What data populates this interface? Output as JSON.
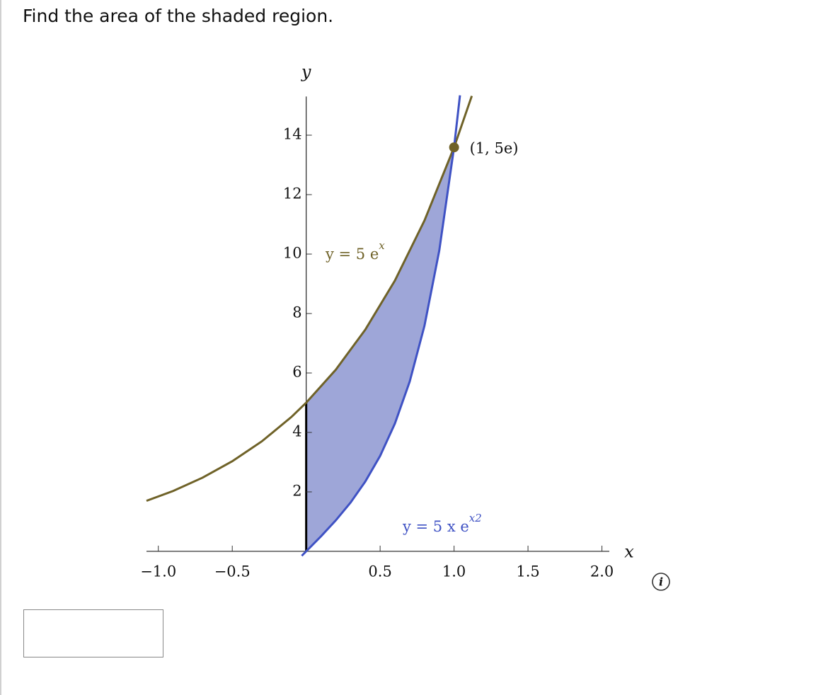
{
  "question": "Find the area of the shaded region.",
  "chart_data": {
    "type": "line",
    "axis_labels": {
      "x": "x",
      "y": "y"
    },
    "xlim": [
      -1.08,
      2.05
    ],
    "ylim": [
      0,
      15.3
    ],
    "xticks": [
      {
        "value": -1,
        "label": "−1.0"
      },
      {
        "value": -0.5,
        "label": "−0.5"
      },
      0.5,
      {
        "value": 1,
        "label": "1.0"
      },
      1.5,
      {
        "value": 2,
        "label": "2.0"
      }
    ],
    "yticks": [
      2,
      4,
      6,
      8,
      10,
      12,
      14
    ],
    "series": [
      {
        "name": {
          "text": "y = 5 e",
          "sup": "x"
        },
        "color": "#6f6228",
        "x": [
          -1.08,
          -0.9,
          -0.7,
          -0.5,
          -0.3,
          -0.1,
          0,
          0.2,
          0.4,
          0.6,
          0.8,
          1.0,
          1.12
        ],
        "values": [
          1.7,
          2.03,
          2.48,
          3.03,
          3.7,
          4.52,
          5,
          6.11,
          7.46,
          9.11,
          11.13,
          13.59,
          15.32
        ]
      },
      {
        "name": {
          "text": "y = 5 x e",
          "sup": "x2"
        },
        "color": "#3f52c4",
        "x": [
          -0.03,
          0,
          0.1,
          0.2,
          0.3,
          0.4,
          0.5,
          0.6,
          0.7,
          0.8,
          0.9,
          1.0,
          1.04
        ],
        "values": [
          -0.15,
          0,
          0.505,
          1.04,
          1.64,
          2.35,
          3.21,
          4.3,
          5.71,
          7.59,
          10.12,
          13.59,
          15.34
        ]
      }
    ],
    "shade_color": "#9ea6d8",
    "point": {
      "x": 1,
      "y": 13.59,
      "label": "(1, 5e)",
      "color": "#6f6228"
    }
  }
}
